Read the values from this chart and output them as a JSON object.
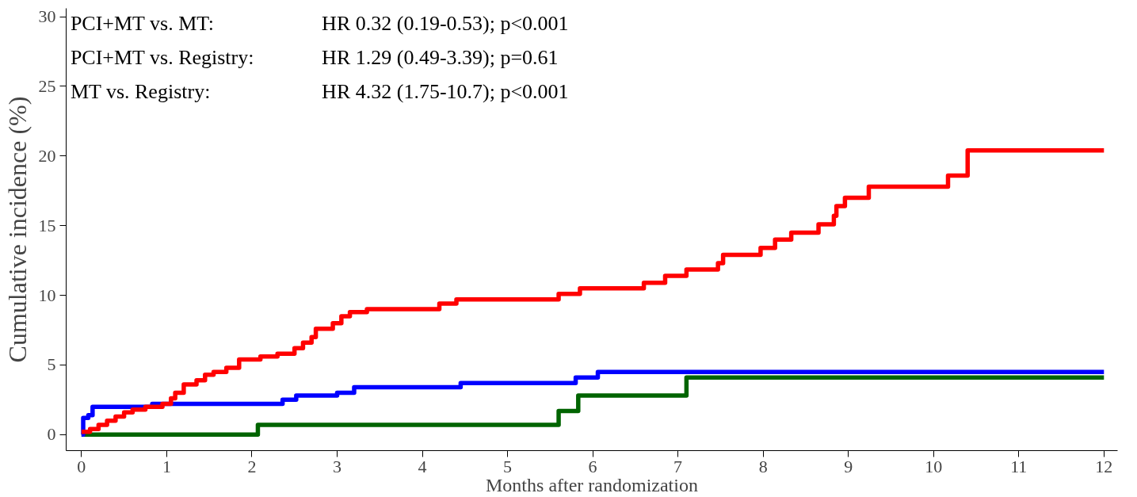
{
  "chart_data": {
    "type": "step",
    "xlabel": "Months after randomization",
    "ylabel": "Cumulative incidence (%)",
    "xlim": [
      -0.18,
      12.16
    ],
    "ylim": [
      -1.15,
      30.6
    ],
    "xticks": [
      0,
      1,
      2,
      3,
      4,
      5,
      6,
      7,
      8,
      9,
      10,
      11,
      12
    ],
    "yticks": [
      0,
      5,
      10,
      15,
      20,
      25,
      30
    ],
    "grid": false,
    "line_style": "solid",
    "annotations": [
      "PCI+MT vs. MT:",
      "HR 0.32 (0.19-0.53); p<0.001",
      "PCI+MT vs. Registry:",
      "HR 1.29 (0.49-3.39); p=0.61",
      "MT vs. Registry:",
      "HR 4.32 (1.75-10.7); p<0.001"
    ],
    "series": [
      {
        "color": "#006400",
        "x": [
          0,
          2.07,
          5.6,
          5.83,
          7.1,
          12
        ],
        "values": [
          0,
          0.7,
          1.7,
          2.8,
          4.1,
          4.1
        ]
      },
      {
        "color": "#0000ff",
        "x": [
          0,
          0.02,
          0.08,
          0.13,
          0.83,
          2.36,
          2.52,
          3.0,
          3.2,
          4.45,
          5.8,
          6.06,
          12
        ],
        "values": [
          0,
          1.2,
          1.4,
          2.0,
          2.2,
          2.5,
          2.8,
          3.0,
          3.4,
          3.7,
          4.1,
          4.5,
          4.5
        ]
      },
      {
        "color": "#ff0000",
        "x": [
          0,
          0.1,
          0.2,
          0.3,
          0.4,
          0.5,
          0.6,
          0.75,
          0.95,
          1.05,
          1.1,
          1.2,
          1.35,
          1.45,
          1.55,
          1.7,
          1.85,
          2.1,
          2.3,
          2.5,
          2.6,
          2.7,
          2.75,
          2.95,
          3.05,
          3.15,
          3.35,
          4.2,
          4.4,
          5.6,
          5.85,
          6.6,
          6.85,
          7.1,
          7.47,
          7.53,
          7.97,
          8.14,
          8.33,
          8.65,
          8.83,
          8.86,
          8.96,
          9.24,
          10.17,
          10.4,
          12
        ],
        "values": [
          0.2,
          0.4,
          0.7,
          1.0,
          1.3,
          1.6,
          1.8,
          2.0,
          2.2,
          2.6,
          3.0,
          3.6,
          3.9,
          4.3,
          4.5,
          4.8,
          5.4,
          5.6,
          5.8,
          6.2,
          6.6,
          7.0,
          7.6,
          8.0,
          8.5,
          8.8,
          9.0,
          9.4,
          9.7,
          10.1,
          10.5,
          10.9,
          11.4,
          11.85,
          12.3,
          12.9,
          13.4,
          14.0,
          14.5,
          15.1,
          15.7,
          16.4,
          17.0,
          17.8,
          18.6,
          20.4,
          20.4
        ]
      }
    ]
  }
}
